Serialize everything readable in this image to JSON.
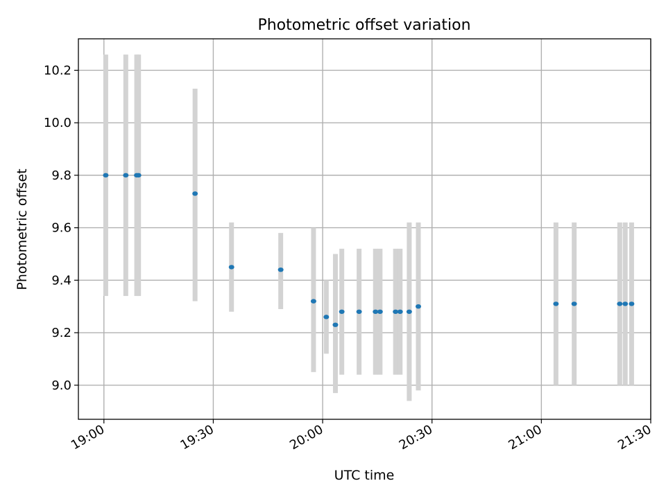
{
  "chart_data": {
    "type": "scatter",
    "title": "Photometric offset variation",
    "xlabel": "UTC time",
    "ylabel": "Photometric offset",
    "grid": true,
    "x_axis": {
      "unit": "UTC time (HH:MM)",
      "range": [
        "18:53",
        "21:30"
      ],
      "tick_labels": [
        "19:00",
        "19:30",
        "20:00",
        "20:30",
        "21:00",
        "21:30"
      ],
      "tick_values": [
        "19:00",
        "19:30",
        "20:00",
        "20:30",
        "21:00",
        "21:30"
      ]
    },
    "y_axis": {
      "range": [
        8.87,
        10.32
      ],
      "ticks": [
        9.0,
        9.2,
        9.4,
        9.6,
        9.8,
        10.0,
        10.2
      ],
      "tick_labels": [
        "9.0",
        "9.2",
        "9.4",
        "9.6",
        "9.8",
        "10.0",
        "10.2"
      ]
    },
    "colors": {
      "point": "#1f77b4",
      "errorbar": "#d3d3d3",
      "grid": "#b0b0b0"
    },
    "points": [
      {
        "x": "19:00:30",
        "y": 9.8,
        "err_low": 9.34,
        "err_high": 10.26
      },
      {
        "x": "19:06:00",
        "y": 9.8,
        "err_low": 9.34,
        "err_high": 10.26
      },
      {
        "x": "19:09:00",
        "y": 9.8,
        "err_low": 9.34,
        "err_high": 10.26
      },
      {
        "x": "19:09:30",
        "y": 9.8,
        "err_low": 9.34,
        "err_high": 10.26
      },
      {
        "x": "19:25:00",
        "y": 9.73,
        "err_low": 9.32,
        "err_high": 10.13
      },
      {
        "x": "19:35:00",
        "y": 9.45,
        "err_low": 9.28,
        "err_high": 9.62
      },
      {
        "x": "19:48:30",
        "y": 9.44,
        "err_low": 9.29,
        "err_high": 9.58
      },
      {
        "x": "19:57:30",
        "y": 9.32,
        "err_low": 9.05,
        "err_high": 9.6
      },
      {
        "x": "20:01:00",
        "y": 9.26,
        "err_low": 9.12,
        "err_high": 9.4
      },
      {
        "x": "20:03:30",
        "y": 9.23,
        "err_low": 8.97,
        "err_high": 9.5
      },
      {
        "x": "20:05:15",
        "y": 9.28,
        "err_low": 9.04,
        "err_high": 9.52
      },
      {
        "x": "20:10:00",
        "y": 9.28,
        "err_low": 9.04,
        "err_high": 9.52
      },
      {
        "x": "20:14:30",
        "y": 9.28,
        "err_low": 9.04,
        "err_high": 9.52
      },
      {
        "x": "20:15:45",
        "y": 9.28,
        "err_low": 9.04,
        "err_high": 9.52
      },
      {
        "x": "20:20:00",
        "y": 9.28,
        "err_low": 9.04,
        "err_high": 9.52
      },
      {
        "x": "20:21:15",
        "y": 9.28,
        "err_low": 9.04,
        "err_high": 9.52
      },
      {
        "x": "20:23:45",
        "y": 9.28,
        "err_low": 8.94,
        "err_high": 9.62
      },
      {
        "x": "20:26:15",
        "y": 9.3,
        "err_low": 8.98,
        "err_high": 9.62
      },
      {
        "x": "21:04:00",
        "y": 9.31,
        "err_low": 9.0,
        "err_high": 9.62
      },
      {
        "x": "21:09:00",
        "y": 9.31,
        "err_low": 9.0,
        "err_high": 9.62
      },
      {
        "x": "21:21:30",
        "y": 9.31,
        "err_low": 9.0,
        "err_high": 9.62
      },
      {
        "x": "21:23:00",
        "y": 9.31,
        "err_low": 9.0,
        "err_high": 9.62
      },
      {
        "x": "21:24:45",
        "y": 9.31,
        "err_low": 9.0,
        "err_high": 9.62
      }
    ]
  }
}
